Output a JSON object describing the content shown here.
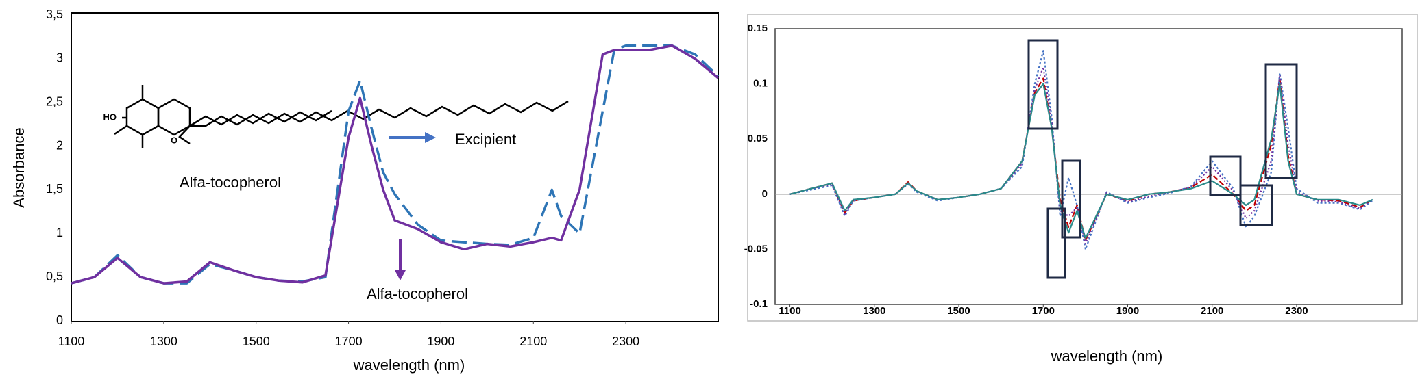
{
  "chart_data": [
    {
      "type": "line",
      "y_label": "Absorbance",
      "x_label": "wavelength (nm)",
      "x": [
        1100,
        1150,
        1200,
        1250,
        1300,
        1350,
        1400,
        1450,
        1500,
        1550,
        1600,
        1650,
        1700,
        1725,
        1750,
        1775,
        1800,
        1850,
        1900,
        1950,
        2000,
        2050,
        2100,
        2140,
        2160,
        2200,
        2250,
        2275,
        2300,
        2350,
        2400,
        2450,
        2500
      ],
      "series": [
        {
          "name": "Excipient",
          "color": "#2e75b6",
          "dashed": true,
          "values": [
            0.43,
            0.5,
            0.75,
            0.5,
            0.43,
            0.43,
            0.65,
            0.58,
            0.5,
            0.46,
            0.45,
            0.5,
            2.4,
            2.75,
            2.2,
            1.7,
            1.45,
            1.1,
            0.92,
            0.9,
            0.88,
            0.87,
            0.95,
            1.5,
            1.2,
            1.0,
            2.4,
            3.1,
            3.15,
            3.15,
            3.15,
            3.05,
            2.8
          ]
        },
        {
          "name": "Alfa-tocopherol",
          "color": "#7030a0",
          "dashed": false,
          "values": [
            0.43,
            0.5,
            0.72,
            0.5,
            0.43,
            0.45,
            0.67,
            0.58,
            0.5,
            0.46,
            0.44,
            0.52,
            2.1,
            2.55,
            2.0,
            1.5,
            1.15,
            1.05,
            0.9,
            0.82,
            0.88,
            0.85,
            0.9,
            0.95,
            0.92,
            1.5,
            3.05,
            3.1,
            3.1,
            3.1,
            3.15,
            3.0,
            2.78
          ]
        }
      ],
      "xlim": [
        1100,
        2500
      ],
      "ylim": [
        0,
        3.5
      ],
      "xticks": [
        1100,
        1300,
        1500,
        1700,
        1900,
        2100,
        2300
      ],
      "yticks": [
        0,
        {
          "value": 0.5,
          "label": "0,5"
        },
        1,
        {
          "value": 1.5,
          "label": "1,5"
        },
        2,
        {
          "value": 2.5,
          "label": "2,5"
        },
        3,
        {
          "value": 3.5,
          "label": "3,5"
        }
      ],
      "structure_labels": [
        "HO",
        "O"
      ],
      "annotations": [
        "Excipient",
        "Alfa-tocopherol",
        "Alfa-tocopherol"
      ]
    },
    {
      "type": "line",
      "x_label": "wavelength (nm)",
      "x": [
        1100,
        1150,
        1200,
        1230,
        1250,
        1300,
        1350,
        1380,
        1400,
        1450,
        1500,
        1550,
        1600,
        1650,
        1680,
        1700,
        1720,
        1740,
        1760,
        1780,
        1800,
        1850,
        1900,
        1950,
        2000,
        2050,
        2100,
        2150,
        2180,
        2200,
        2240,
        2260,
        2280,
        2300,
        2350,
        2400,
        2450,
        2480
      ],
      "series": [
        {
          "color": "#c00000",
          "dash": "8 4",
          "values": [
            0,
            0.005,
            0.01,
            -0.017,
            -0.006,
            -0.003,
            0,
            0.011,
            0.003,
            -0.005,
            -0.003,
            0,
            0.005,
            0.03,
            0.092,
            0.105,
            0.06,
            -0.005,
            -0.03,
            -0.01,
            -0.042,
            0,
            -0.006,
            0,
            0.002,
            0.006,
            0.018,
            0,
            -0.015,
            -0.01,
            0.045,
            0.105,
            0.035,
            0,
            -0.005,
            -0.006,
            -0.012,
            -0.005
          ]
        },
        {
          "color": "#4472c4",
          "dash": "3 3",
          "values": [
            0,
            0.004,
            0.008,
            -0.02,
            -0.006,
            -0.003,
            0,
            0.009,
            0.002,
            -0.006,
            -0.003,
            0,
            0.005,
            0.025,
            0.1,
            0.13,
            0.07,
            -0.02,
            0.015,
            -0.01,
            -0.05,
            0.002,
            -0.008,
            -0.003,
            0.001,
            0.007,
            0.03,
            0.005,
            -0.03,
            -0.02,
            0.02,
            0.11,
            0.06,
            0.005,
            -0.008,
            -0.008,
            -0.014,
            -0.006
          ]
        },
        {
          "color": "#7030a0",
          "dash": "2 3",
          "values": [
            0,
            0.005,
            0.009,
            -0.018,
            -0.005,
            -0.003,
            0,
            0.01,
            0.003,
            -0.005,
            -0.003,
            0,
            0.005,
            0.028,
            0.095,
            0.115,
            0.065,
            -0.015,
            -0.02,
            -0.012,
            -0.045,
            0.001,
            -0.007,
            -0.002,
            0.002,
            0.006,
            0.025,
            0.003,
            -0.022,
            -0.015,
            0.03,
            0.108,
            0.045,
            0.002,
            -0.006,
            -0.007,
            -0.013,
            -0.005
          ]
        },
        {
          "color": "#2a8a8a",
          "dash": "",
          "values": [
            0,
            0.005,
            0.01,
            -0.015,
            -0.005,
            -0.003,
            0,
            0.01,
            0.003,
            -0.005,
            -0.003,
            0,
            0.005,
            0.03,
            0.09,
            0.1,
            0.06,
            -0.01,
            -0.035,
            -0.015,
            -0.04,
            0.0,
            -0.005,
            0,
            0.002,
            0.005,
            0.012,
            0,
            -0.01,
            -0.005,
            0.05,
            0.1,
            0.03,
            0.0,
            -0.005,
            -0.005,
            -0.01,
            -0.005
          ]
        }
      ],
      "xlim": [
        1065,
        2550
      ],
      "ylim": [
        -0.1,
        0.15
      ],
      "xticks": [
        1100,
        1300,
        1500,
        1700,
        1900,
        2100,
        2300
      ],
      "yticks": [
        -0.1,
        -0.05,
        0,
        0.05,
        0.1,
        0.15
      ]
    }
  ]
}
